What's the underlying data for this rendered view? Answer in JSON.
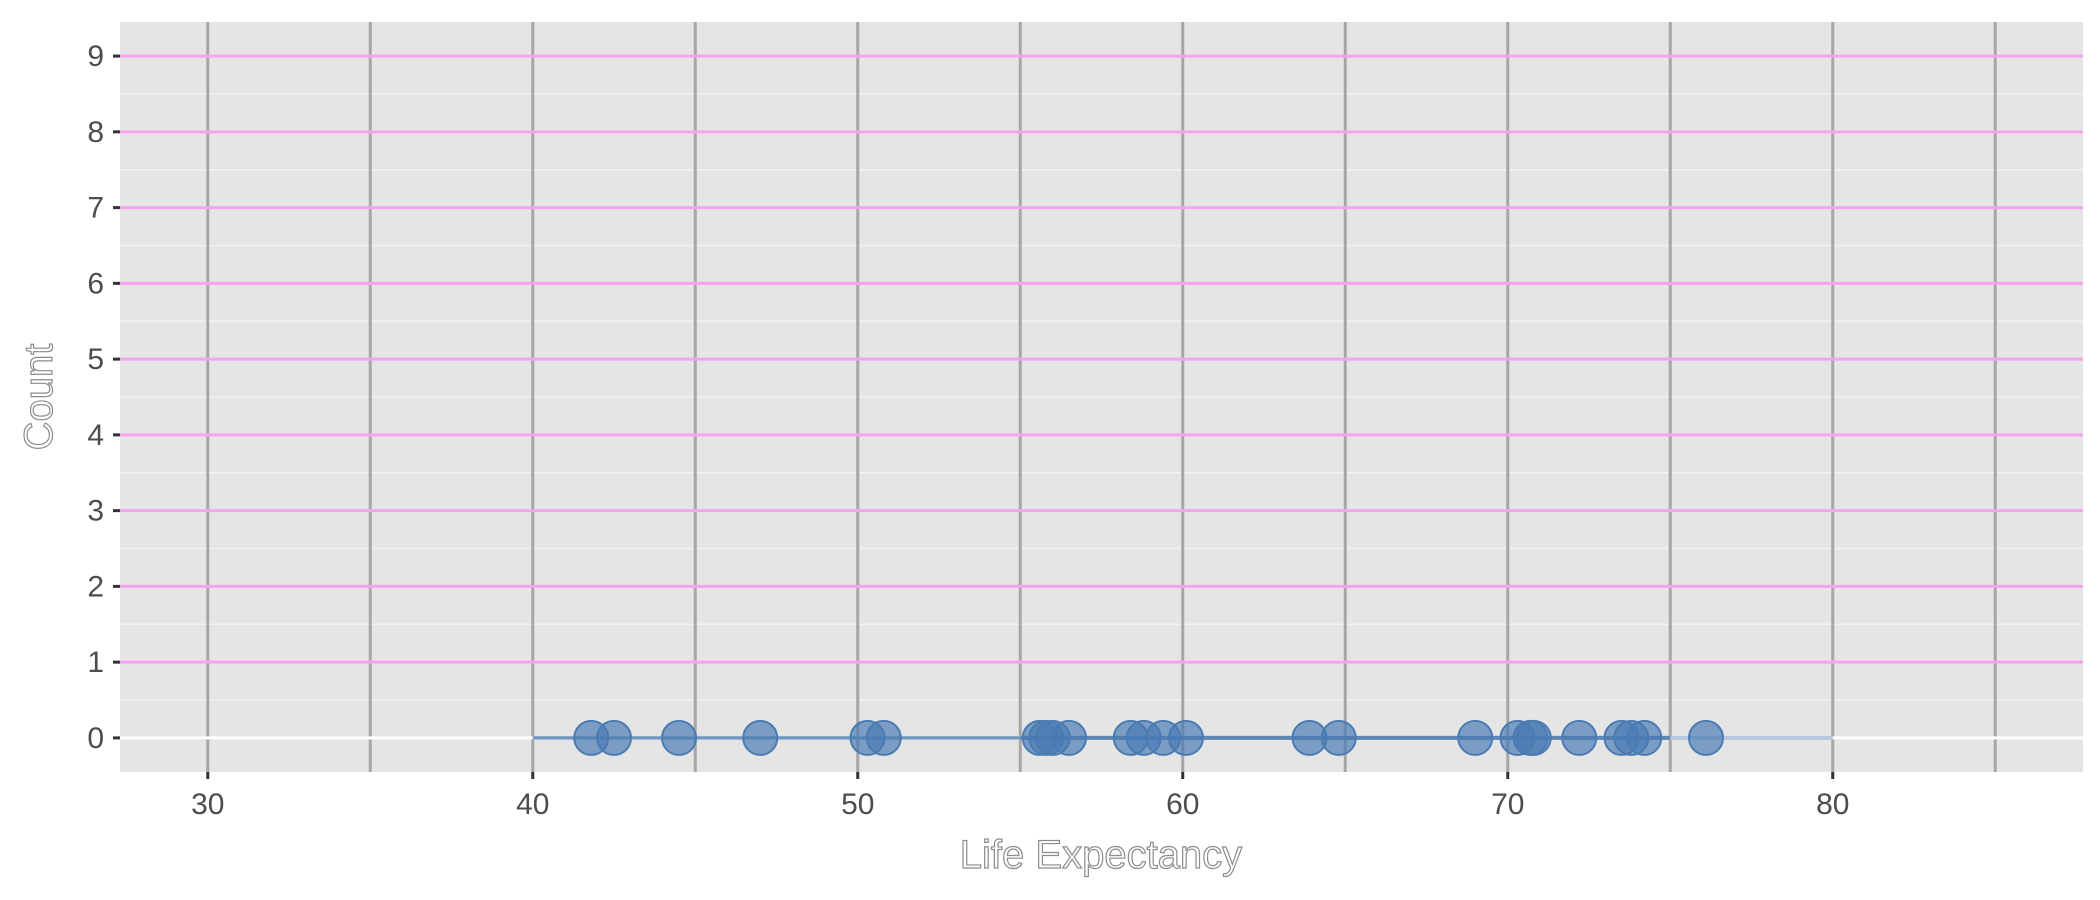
{
  "chart_data": {
    "type": "scatter",
    "title": "",
    "xlabel": "Life Expectancy",
    "ylabel": "Count",
    "xlim": [
      27.3,
      87.7
    ],
    "ylim": [
      -0.45,
      9.45
    ],
    "x_ticks": [
      30,
      40,
      50,
      60,
      70,
      80
    ],
    "y_ticks": [
      0,
      1,
      2,
      3,
      4,
      5,
      6,
      7,
      8,
      9
    ],
    "x_minor_gridlines": [
      35,
      45,
      55,
      65,
      75,
      85
    ],
    "grid": true,
    "legend": "none",
    "range_segment": {
      "from": 40,
      "to": 80,
      "y": 0,
      "shade_from": 55,
      "shade_to": 75
    },
    "points": [
      {
        "x": 41.8,
        "y": 0
      },
      {
        "x": 42.5,
        "y": 0
      },
      {
        "x": 44.5,
        "y": 0
      },
      {
        "x": 47.0,
        "y": 0
      },
      {
        "x": 50.3,
        "y": 0
      },
      {
        "x": 50.8,
        "y": 0
      },
      {
        "x": 55.6,
        "y": 0
      },
      {
        "x": 55.8,
        "y": 0
      },
      {
        "x": 56.0,
        "y": 0
      },
      {
        "x": 56.5,
        "y": 0
      },
      {
        "x": 58.4,
        "y": 0
      },
      {
        "x": 58.8,
        "y": 0
      },
      {
        "x": 59.4,
        "y": 0
      },
      {
        "x": 60.1,
        "y": 0
      },
      {
        "x": 63.9,
        "y": 0
      },
      {
        "x": 64.8,
        "y": 0
      },
      {
        "x": 69.0,
        "y": 0
      },
      {
        "x": 70.3,
        "y": 0
      },
      {
        "x": 70.7,
        "y": 0
      },
      {
        "x": 70.8,
        "y": 0
      },
      {
        "x": 72.2,
        "y": 0
      },
      {
        "x": 73.5,
        "y": 0
      },
      {
        "x": 73.8,
        "y": 0
      },
      {
        "x": 74.2,
        "y": 0
      },
      {
        "x": 76.1,
        "y": 0
      }
    ],
    "colors": {
      "panel": "#e5e5e5",
      "minor_grid": "#f2f2f2",
      "x_grid": "#a6a6a6",
      "y_grid": "#f5a3f0",
      "point": "#4a7bb2",
      "segment": "#5d86b5",
      "segment_light": "#b4c8dd"
    }
  }
}
